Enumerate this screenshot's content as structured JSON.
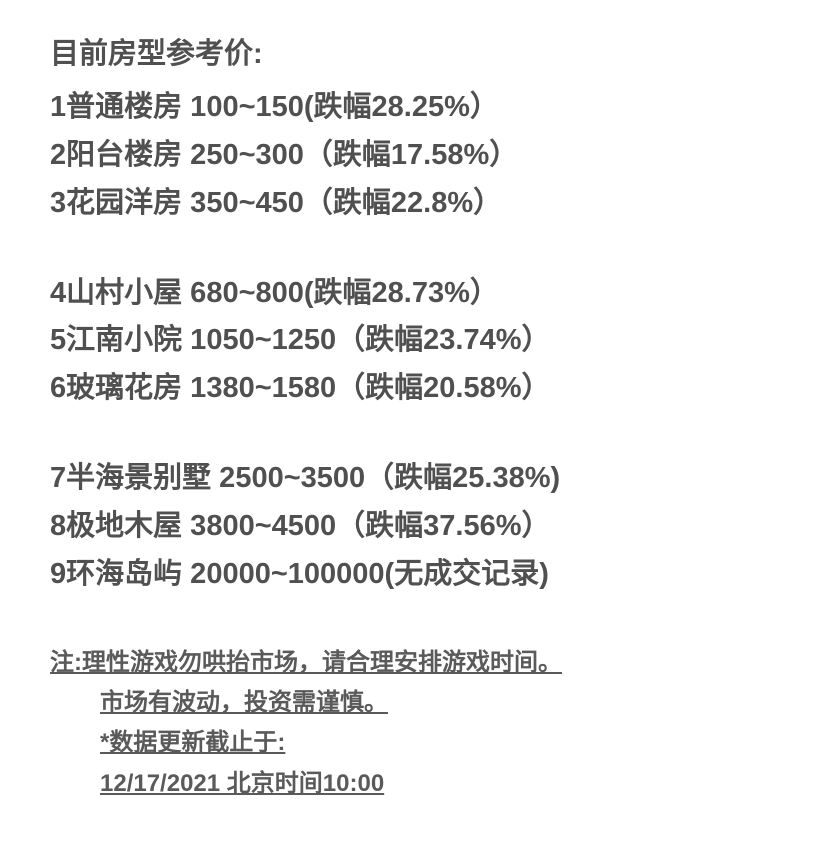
{
  "title": "目前房型参考价:",
  "groups": [
    {
      "items": [
        {
          "text": "1普通楼房 100~150(跌幅28.25%）"
        },
        {
          "text": "2阳台楼房 250~300（跌幅17.58%）"
        },
        {
          "text": "3花园洋房 350~450（跌幅22.8%）"
        }
      ]
    },
    {
      "items": [
        {
          "text": "4山村小屋 680~800(跌幅28.73%）"
        },
        {
          "text": "5江南小院 1050~1250（跌幅23.74%）"
        },
        {
          "text": "6玻璃花房 1380~1580（跌幅20.58%）"
        }
      ]
    },
    {
      "items": [
        {
          "text": "7半海景别墅 2500~3500（跌幅25.38%)"
        },
        {
          "text": "8极地木屋 3800~4500（跌幅37.56%）"
        },
        {
          "text": "9环海岛屿 20000~100000(无成交记录)"
        }
      ]
    }
  ],
  "notes": [
    {
      "text": "注:理性游戏勿哄抬市场，请合理安排游戏时间。",
      "indent": false
    },
    {
      "text": "市场有波动，投资需谨慎。",
      "indent": true
    },
    {
      "text": "*数据更新截止于:",
      "indent": true
    },
    {
      "text": "12/17/2021 北京时间10:00",
      "indent": true
    }
  ],
  "styling": {
    "background_color": "#ffffff",
    "text_color": "#505050",
    "note_color": "#5a5a5a",
    "title_fontsize": 29,
    "item_fontsize": 29,
    "note_fontsize": 24,
    "font_weight": "bold",
    "font_family": "PingFang SC"
  }
}
